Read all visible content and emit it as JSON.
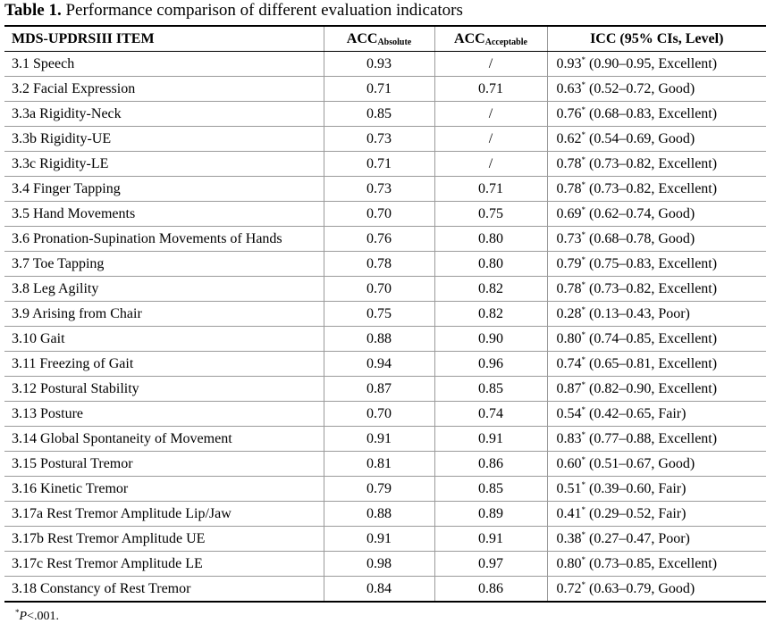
{
  "caption": {
    "label": "Table 1.",
    "text": " Performance comparison of different evaluation indicators"
  },
  "columns": {
    "item": "MDS-UPDRSIII ITEM",
    "acc_abs_main": "ACC",
    "acc_abs_sub": "Absolute",
    "acc_acc_main": "ACC",
    "acc_acc_sub": "Acceptable",
    "icc": "ICC (95% CIs, Level)"
  },
  "rows": [
    {
      "item": "3.1 Speech",
      "acc_abs": "0.93",
      "acc_acc": "/",
      "icc": "0.93",
      "icc_rest": " (0.90–0.95, Excellent)"
    },
    {
      "item": "3.2 Facial Expression",
      "acc_abs": "0.71",
      "acc_acc": "0.71",
      "icc": "0.63",
      "icc_rest": " (0.52–0.72, Good)"
    },
    {
      "item": "3.3a Rigidity-Neck",
      "acc_abs": "0.85",
      "acc_acc": "/",
      "icc": "0.76",
      "icc_rest": " (0.68–0.83, Excellent)"
    },
    {
      "item": "3.3b Rigidity-UE",
      "acc_abs": "0.73",
      "acc_acc": "/",
      "icc": "0.62",
      "icc_rest": " (0.54–0.69, Good)"
    },
    {
      "item": "3.3c Rigidity-LE",
      "acc_abs": "0.71",
      "acc_acc": "/",
      "icc": "0.78",
      "icc_rest": " (0.73–0.82, Excellent)"
    },
    {
      "item": "3.4 Finger Tapping",
      "acc_abs": "0.73",
      "acc_acc": "0.71",
      "icc": "0.78",
      "icc_rest": " (0.73–0.82, Excellent)"
    },
    {
      "item": "3.5 Hand Movements",
      "acc_abs": "0.70",
      "acc_acc": "0.75",
      "icc": "0.69",
      "icc_rest": " (0.62–0.74, Good)"
    },
    {
      "item": "3.6 Pronation-Supination Movements of Hands",
      "acc_abs": "0.76",
      "acc_acc": "0.80",
      "icc": "0.73",
      "icc_rest": " (0.68–0.78, Good)"
    },
    {
      "item": "3.7 Toe Tapping",
      "acc_abs": "0.78",
      "acc_acc": "0.80",
      "icc": "0.79",
      "icc_rest": " (0.75–0.83, Excellent)"
    },
    {
      "item": "3.8 Leg Agility",
      "acc_abs": "0.70",
      "acc_acc": "0.82",
      "icc": "0.78",
      "icc_rest": " (0.73–0.82, Excellent)"
    },
    {
      "item": "3.9 Arising from Chair",
      "acc_abs": "0.75",
      "acc_acc": "0.82",
      "icc": "0.28",
      "icc_rest": " (0.13–0.43, Poor)"
    },
    {
      "item": "3.10 Gait",
      "acc_abs": "0.88",
      "acc_acc": "0.90",
      "icc": "0.80",
      "icc_rest": " (0.74–0.85, Excellent)"
    },
    {
      "item": "3.11 Freezing of Gait",
      "acc_abs": "0.94",
      "acc_acc": "0.96",
      "icc": "0.74",
      "icc_rest": " (0.65–0.81, Excellent)"
    },
    {
      "item": "3.12 Postural Stability",
      "acc_abs": "0.87",
      "acc_acc": "0.85",
      "icc": "0.87",
      "icc_rest": " (0.82–0.90, Excellent)"
    },
    {
      "item": "3.13 Posture",
      "acc_abs": "0.70",
      "acc_acc": "0.74",
      "icc": "0.54",
      "icc_rest": " (0.42–0.65, Fair)"
    },
    {
      "item": "3.14 Global Spontaneity of Movement",
      "acc_abs": "0.91",
      "acc_acc": "0.91",
      "icc": "0.83",
      "icc_rest": " (0.77–0.88, Excellent)"
    },
    {
      "item": "3.15 Postural Tremor",
      "acc_abs": "0.81",
      "acc_acc": "0.86",
      "icc": "0.60",
      "icc_rest": " (0.51–0.67, Good)"
    },
    {
      "item": "3.16 Kinetic Tremor",
      "acc_abs": "0.79",
      "acc_acc": "0.85",
      "icc": "0.51",
      "icc_rest": " (0.39–0.60, Fair)"
    },
    {
      "item": "3.17a Rest Tremor Amplitude Lip/Jaw",
      "acc_abs": "0.88",
      "acc_acc": "0.89",
      "icc": "0.41",
      "icc_rest": " (0.29–0.52, Fair)"
    },
    {
      "item": "3.17b Rest Tremor Amplitude UE",
      "acc_abs": "0.91",
      "acc_acc": "0.91",
      "icc": "0.38",
      "icc_rest": " (0.27–0.47, Poor)"
    },
    {
      "item": "3.17c Rest Tremor Amplitude LE",
      "acc_abs": "0.98",
      "acc_acc": "0.97",
      "icc": "0.80",
      "icc_rest": " (0.73–0.85, Excellent)"
    },
    {
      "item": "3.18 Constancy of Rest Tremor",
      "acc_abs": "0.84",
      "acc_acc": "0.86",
      "icc": "0.72",
      "icc_rest": " (0.63–0.79, Good)"
    }
  ],
  "significance_mark": "*",
  "footnote": {
    "mark": "*",
    "p_symbol": "P",
    "text": "<.001."
  }
}
